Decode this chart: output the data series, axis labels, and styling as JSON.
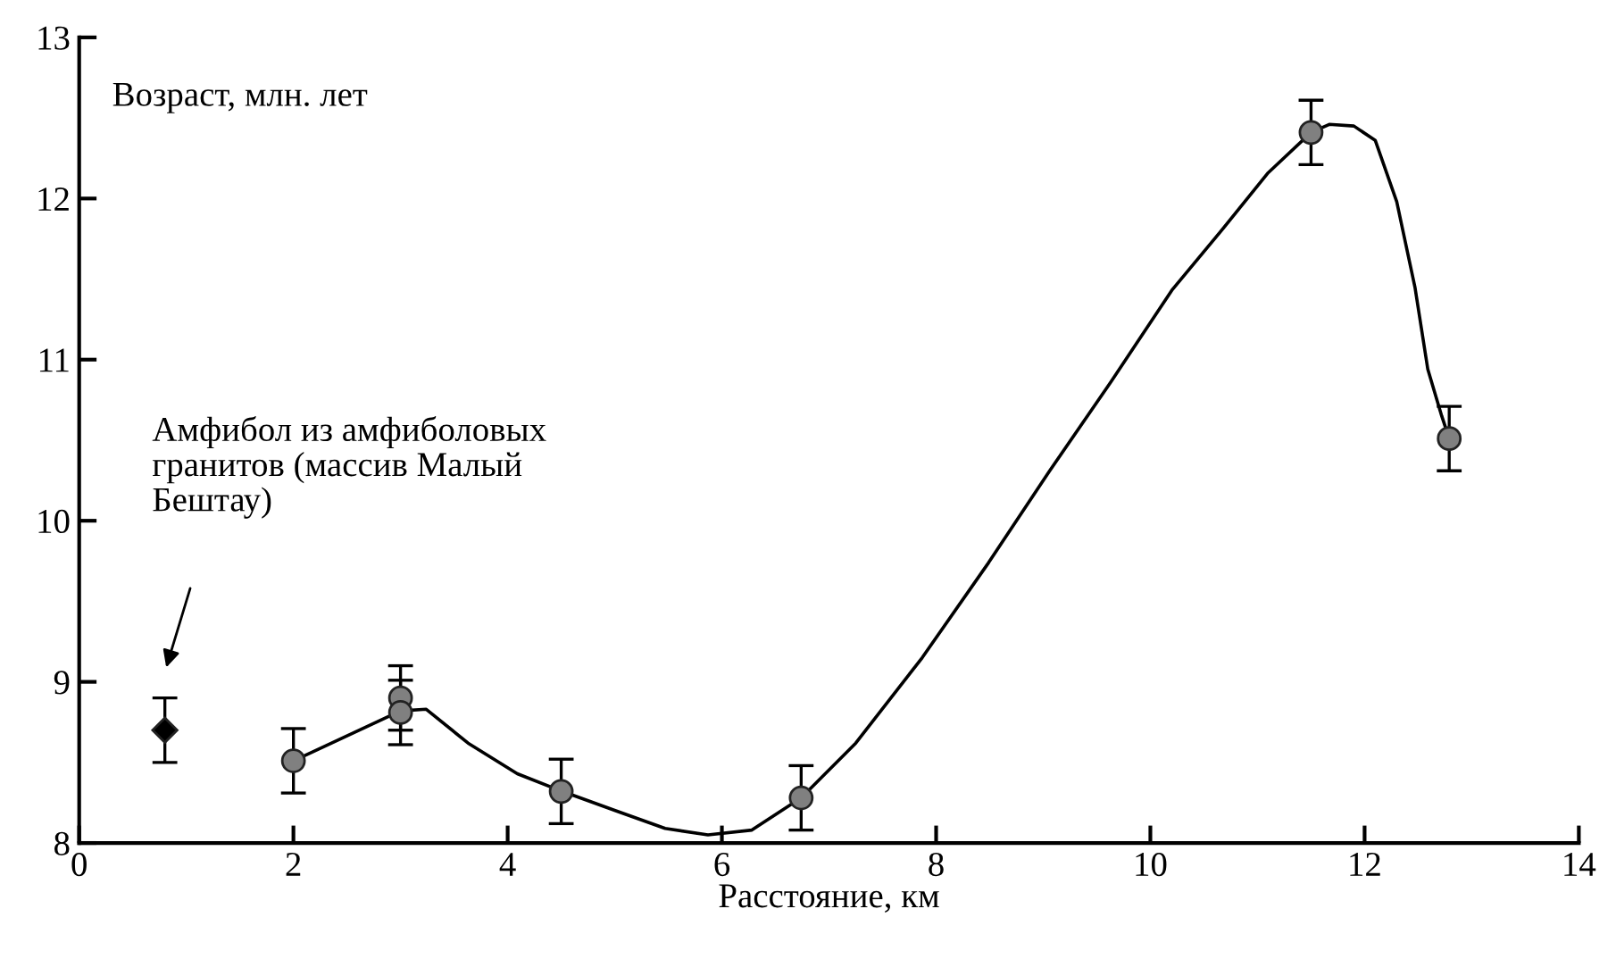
{
  "chart_data": {
    "type": "scatter",
    "xlabel": "Расстояние, км",
    "ylabel": "Возраст, млн. лет",
    "xlim": [
      0,
      14
    ],
    "ylim": [
      8,
      13
    ],
    "xticks": [
      0,
      2,
      4,
      6,
      8,
      10,
      12,
      14
    ],
    "yticks": [
      8,
      9,
      10,
      11,
      12,
      13
    ],
    "grid": false,
    "legend": false,
    "annotations": [
      "Амфибол из амфиболовых\nгранитов (массив Малый\nБештау)"
    ],
    "series": [
      {
        "marker": "circle",
        "color": "#808080",
        "x": [
          2.0,
          3.0,
          3.0,
          4.5,
          6.74,
          11.5,
          12.79
        ],
        "values": [
          8.51,
          8.9,
          8.81,
          8.32,
          8.28,
          12.41,
          10.51
        ],
        "errors": [
          0.2,
          0.2,
          0.2,
          0.2,
          0.2,
          0.2,
          0.2
        ]
      },
      {
        "marker": "diamond",
        "color": "#000000",
        "x": [
          0.8
        ],
        "values": [
          8.7
        ],
        "errors": [
          0.2
        ]
      },
      {
        "type": "line",
        "marker": "none",
        "line_style": "solid",
        "color": "#000000",
        "x": [
          2.0,
          3.0,
          3.24,
          3.63,
          4.09,
          4.51,
          5.01,
          5.47,
          5.87,
          6.28,
          6.74,
          7.25,
          7.87,
          8.49,
          9.06,
          9.63,
          10.2,
          10.65,
          11.1,
          11.5,
          11.67,
          11.9,
          12.1,
          12.3,
          12.47,
          12.59,
          12.72,
          12.79
        ],
        "values": [
          8.51,
          8.82,
          8.83,
          8.62,
          8.43,
          8.32,
          8.2,
          8.09,
          8.05,
          8.08,
          8.28,
          8.62,
          9.15,
          9.74,
          10.31,
          10.86,
          11.43,
          11.79,
          12.16,
          12.41,
          12.46,
          12.45,
          12.36,
          11.98,
          11.45,
          10.94,
          10.65,
          10.51
        ]
      }
    ]
  }
}
